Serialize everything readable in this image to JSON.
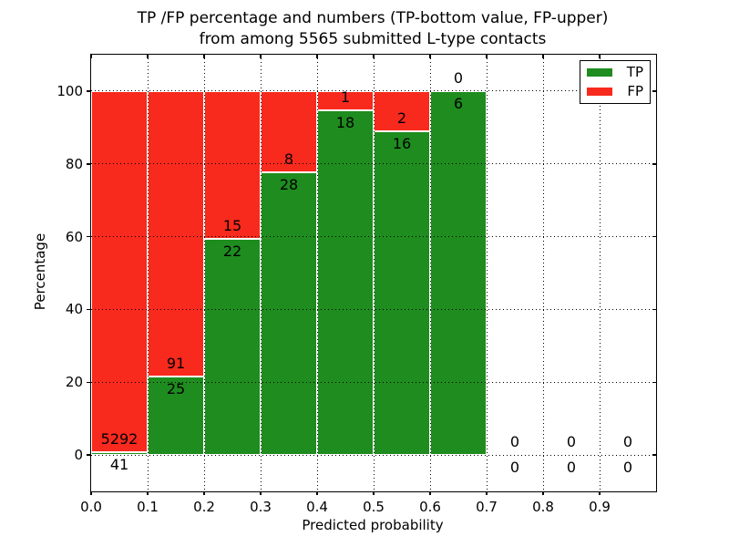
{
  "figure": {
    "background": "#ffffff",
    "text_color": "#000000"
  },
  "chart_data": {
    "type": "bar",
    "stacked": true,
    "orientation": "vertical",
    "title": "TP /FP percentage and numbers (TP-bottom value, FP-upper) from among 5565 submitted L-type contacts",
    "title_lines": [
      "TP /FP percentage and numbers (TP-bottom value, FP-upper)",
      "from among 5565 submitted L-type contacts"
    ],
    "xlabel": "Predicted probability",
    "ylabel": "Percentage",
    "xlim": [
      0.0,
      1.0
    ],
    "ylim": [
      -10,
      110
    ],
    "x_ticks": [
      "0.0",
      "0.1",
      "0.2",
      "0.3",
      "0.4",
      "0.5",
      "0.6",
      "0.7",
      "0.8",
      "0.9"
    ],
    "y_ticks": [
      0,
      20,
      40,
      60,
      80,
      100
    ],
    "grid": "dotted",
    "grid_color": "#000000",
    "bar_edge_color": "#ffffff",
    "annotation_note": "Each bin annotated with FP count above the TP/FP boundary and TP count below it",
    "legend": {
      "position": "upper right",
      "entries": [
        {
          "label": "TP",
          "color": "#1e8c1e"
        },
        {
          "label": "FP",
          "color": "#f8291d"
        }
      ]
    },
    "bins": [
      {
        "range": [
          0.0,
          0.1
        ],
        "tp": 41,
        "fp": 5292
      },
      {
        "range": [
          0.1,
          0.2
        ],
        "tp": 25,
        "fp": 91
      },
      {
        "range": [
          0.2,
          0.3
        ],
        "tp": 22,
        "fp": 15
      },
      {
        "range": [
          0.3,
          0.4
        ],
        "tp": 28,
        "fp": 8
      },
      {
        "range": [
          0.4,
          0.5
        ],
        "tp": 18,
        "fp": 1
      },
      {
        "range": [
          0.5,
          0.6
        ],
        "tp": 16,
        "fp": 2
      },
      {
        "range": [
          0.6,
          0.7
        ],
        "tp": 6,
        "fp": 0
      },
      {
        "range": [
          0.7,
          0.8
        ],
        "tp": 0,
        "fp": 0
      },
      {
        "range": [
          0.8,
          0.9
        ],
        "tp": 0,
        "fp": 0
      },
      {
        "range": [
          0.9,
          1.0
        ],
        "tp": 0,
        "fp": 0
      }
    ]
  }
}
